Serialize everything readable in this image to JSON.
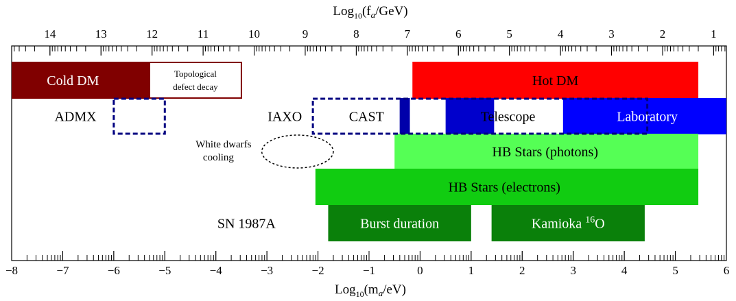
{
  "chart_data": {
    "type": "range-bar",
    "title": "",
    "xlabel_bottom": {
      "pre": "Log",
      "sub": "10",
      "post": "(m",
      "sub2": "a",
      "tail": "/eV)"
    },
    "xlabel_top": {
      "pre": "Log",
      "sub": "10",
      "post": "(f",
      "sub2": "a",
      "tail": "/GeV)"
    },
    "xlim": [
      -8,
      6
    ],
    "bottom_ticks": [
      "−8",
      "−7",
      "−6",
      "−5",
      "−4",
      "−3",
      "−2",
      "−1",
      "0",
      "1",
      "2",
      "3",
      "4",
      "5",
      "6"
    ],
    "top_ticks": [
      {
        "label": "14",
        "at": 14
      },
      {
        "label": "13",
        "at": 13
      },
      {
        "label": "12",
        "at": 12
      },
      {
        "label": "11",
        "at": 11
      },
      {
        "label": "10",
        "at": 10
      },
      {
        "label": "9",
        "at": 9
      },
      {
        "label": "8",
        "at": 8
      },
      {
        "label": "7",
        "at": 7
      },
      {
        "label": "6",
        "at": 6
      },
      {
        "label": "5",
        "at": 5
      },
      {
        "label": "4",
        "at": 4
      },
      {
        "label": "3",
        "at": 3
      },
      {
        "label": "2",
        "at": 2
      },
      {
        "label": "1",
        "at": 1
      }
    ],
    "bars": [
      {
        "name": "Cold DM",
        "x0": -8,
        "x1": -5.3,
        "row": 1,
        "color": "#800000",
        "text_color": "#ffffff"
      },
      {
        "name": "Hot DM",
        "x0": -0.15,
        "x1": 5.45,
        "row": 1,
        "color": "#ff0000",
        "text_color": "#000000"
      },
      {
        "name": "CAST dark segment",
        "x0": -0.4,
        "x1": -0.2,
        "row": 2,
        "color": "#0000aa",
        "text_color": "#ffffff"
      },
      {
        "name": "Telescope",
        "x0": 0.5,
        "x1": 1.45,
        "row": 2,
        "color": "#0000cc",
        "text_color": "#000000"
      },
      {
        "name": "Laboratory",
        "x0": 2.8,
        "x1": 6,
        "row": 2,
        "color": "#0000ff",
        "text_color": "#ffffff"
      },
      {
        "name": "HB Stars (photons)",
        "x0": -0.5,
        "x1": 5.45,
        "row": 3,
        "color": "#55ff55",
        "text_color": "#000000"
      },
      {
        "name": "HB Stars (electrons)",
        "x0": -2.05,
        "x1": 5.45,
        "row": 4,
        "color": "#11cc11",
        "text_color": "#000000"
      },
      {
        "name": "Burst duration",
        "x0": -1.8,
        "x1": 1.0,
        "row": 5,
        "color": "#0a800a",
        "text_color": "#ffffff"
      },
      {
        "name": "Kamioka 16O",
        "x0": 1.4,
        "x1": 4.4,
        "row": 5,
        "color": "#0a800a",
        "text_color": "#ffffff"
      }
    ],
    "outlined": [
      {
        "name": "Topological defect decay",
        "x0": -5.3,
        "x1": -3.5,
        "row": 1,
        "stroke": "#800000"
      }
    ],
    "dashed": [
      {
        "name": "ADMX",
        "x0": -6.0,
        "x1": -5.0,
        "row": 2
      },
      {
        "name": "IAXO",
        "x0": -2.1,
        "x1": 4.45,
        "row": 2
      }
    ],
    "ellipse": {
      "name": "White dwarfs cooling",
      "x_center": -2.4,
      "x_half_width": 0.7,
      "row": 3.5
    },
    "labels": {
      "cold_dm": "Cold DM",
      "topological_line1": "Topological",
      "topological_line2": "defect decay",
      "hot_dm": "Hot DM",
      "admx": "ADMX",
      "iaxo": "IAXO",
      "cast": "CAST",
      "telescope_te": "Te",
      "telescope_rest": "lescope",
      "laboratory": "Laboratory",
      "white_dwarfs_line1": "White dwarfs",
      "white_dwarfs_line2": "cooling",
      "hb_photons": "HB Stars (photons)",
      "hb_electrons": "HB Stars (electrons)",
      "sn1987a": "SN 1987A",
      "burst": "Burst duration",
      "kamioka_pre": "Kamioka ",
      "kamioka_sup": "16",
      "kamioka_post": "O"
    },
    "grid": false,
    "legend": "none"
  }
}
